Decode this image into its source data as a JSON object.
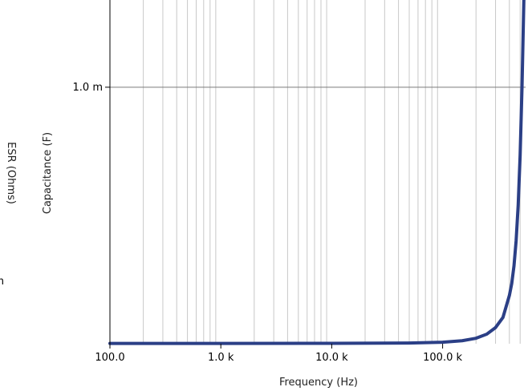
{
  "chart_data": {
    "type": "line",
    "title": "",
    "xlabel": "Frequency (Hz)",
    "ylabel": "Capacitance (F)",
    "y2label": "ESR (Ohms)",
    "y2_tick_fragment": "m",
    "xscale": "log",
    "xlim": [
      100,
      560000
    ],
    "ylim": [
      0,
      0.00134
    ],
    "x_ticks": [
      {
        "value": 100,
        "label": "100.0"
      },
      {
        "value": 1000,
        "label": "1.0 k"
      },
      {
        "value": 10000,
        "label": "10.0 k"
      },
      {
        "value": 100000,
        "label": "100.0 k"
      }
    ],
    "y_ticks": [
      {
        "value": 0.001,
        "label": "1.0 m"
      }
    ],
    "grid": true,
    "legend": "none",
    "colors": {
      "series": "#2b3f86",
      "grid_minor": "#c8c8c8",
      "grid_major": "#7a7a7a",
      "axis": "#000000"
    },
    "series": [
      {
        "x": [
          100,
          1000,
          10000,
          50000,
          100000,
          150000,
          200000,
          250000,
          300000,
          350000,
          400000,
          420000,
          440000,
          460000,
          480000,
          500000,
          520000,
          540000,
          550000
        ],
        "values": [
          1e-06,
          1.1e-06,
          1.5e-06,
          2.8e-06,
          5.8e-06,
          1.18e-05,
          2.13e-05,
          3.73e-05,
          6.29e-05,
          0.0001025,
          0.0001883,
          0.0002346,
          0.0003032,
          0.000401,
          0.0005392,
          0.0007348,
          0.0010017,
          0.0013379,
          0.00139
        ]
      }
    ]
  }
}
